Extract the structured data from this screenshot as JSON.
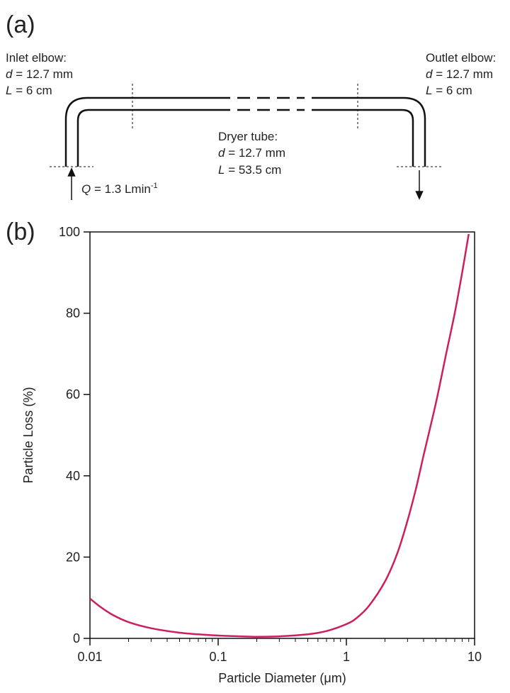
{
  "figure": {
    "panel_a_label": "(a)",
    "panel_b_label": "(b)"
  },
  "schematic": {
    "inlet": {
      "title": "Inlet elbow:",
      "d_var": "d",
      "d_val": " = 12.7 mm",
      "L_var": "L",
      "L_val": " = 6 cm"
    },
    "outlet": {
      "title": "Outlet elbow:",
      "d_var": "d",
      "d_val": " = 12.7 mm",
      "L_var": "L",
      "L_val": " = 6 cm"
    },
    "dryer": {
      "title": "Dryer tube:",
      "d_var": "d",
      "d_val": " = 12.7 mm",
      "L_var": "L",
      "L_val": " = 53.5 cm"
    },
    "flow": {
      "var": "Q",
      "val": " = 1.3 Lmin",
      "sup": "-1"
    }
  },
  "chart_data": {
    "type": "line",
    "xlabel": "Particle Diameter (μm)",
    "ylabel": "Particle Loss (%)",
    "x_scale": "log",
    "xlim": [
      0.01,
      10
    ],
    "ylim": [
      0,
      100
    ],
    "x_ticks": [
      0.01,
      0.1,
      1,
      10
    ],
    "x_tick_labels": [
      "0.01",
      "0.1",
      "1",
      "10"
    ],
    "y_ticks": [
      0,
      20,
      40,
      60,
      80,
      100
    ],
    "y_tick_labels": [
      "0",
      "20",
      "40",
      "60",
      "80",
      "100"
    ],
    "grid": false,
    "series": [
      {
        "color": "#cc1f5f",
        "x": [
          0.01,
          0.012,
          0.015,
          0.02,
          0.03,
          0.05,
          0.07,
          0.1,
          0.15,
          0.2,
          0.3,
          0.5,
          0.7,
          1.0,
          1.2,
          1.5,
          2.0,
          2.5,
          3.0,
          3.5,
          4.0,
          5.0,
          6.0,
          7.0,
          8.0,
          9.0
        ],
        "y": [
          9.8,
          7.8,
          5.8,
          4.0,
          2.5,
          1.4,
          1.0,
          0.7,
          0.5,
          0.4,
          0.5,
          1.0,
          1.8,
          3.5,
          5.0,
          8.0,
          14.0,
          21.0,
          29.0,
          37.0,
          45.0,
          58.0,
          70.0,
          80.0,
          90.0,
          99.5
        ]
      }
    ]
  }
}
